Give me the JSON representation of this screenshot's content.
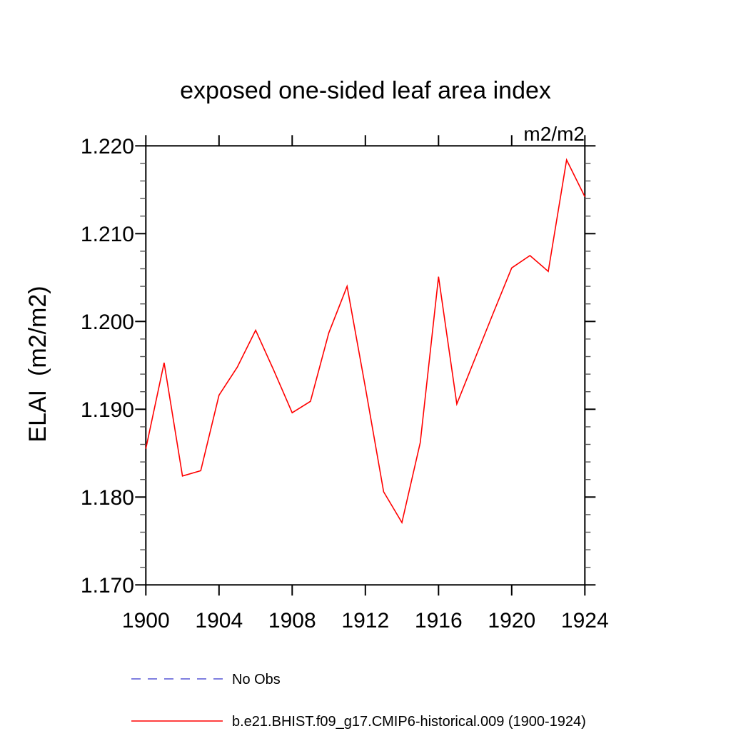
{
  "title": "exposed one-sided leaf area index",
  "units_label": "m2/m2",
  "y_axis_title": "ELAI  (m2/m2)",
  "chart_data": {
    "type": "line",
    "title": "exposed one-sided leaf area index",
    "xlabel": "",
    "ylabel": "ELAI (m2/m2)",
    "units": "m2/m2",
    "x": [
      1900,
      1901,
      1902,
      1903,
      1904,
      1905,
      1906,
      1907,
      1908,
      1909,
      1910,
      1911,
      1912,
      1913,
      1914,
      1915,
      1916,
      1917,
      1918,
      1919,
      1920,
      1921,
      1922,
      1923,
      1924
    ],
    "series": [
      {
        "name": "b.e21.BHIST.f09_g17.CMIP6-historical.009 (1900-1924)",
        "color": "#ff0000",
        "style": "solid",
        "values": [
          1.1855,
          1.1953,
          1.1824,
          1.183,
          1.1916,
          1.1948,
          1.199,
          1.1944,
          1.1896,
          1.1909,
          1.1987,
          1.204,
          1.1925,
          1.1806,
          1.1771,
          1.1862,
          1.2051,
          1.1906,
          1.1958,
          1.201,
          1.2061,
          1.2075,
          1.2057,
          1.2184,
          1.2142
        ]
      }
    ],
    "xlim": [
      1900,
      1924
    ],
    "ylim": [
      1.17,
      1.22
    ],
    "x_major_ticks": [
      1900,
      1904,
      1908,
      1912,
      1916,
      1920,
      1924
    ],
    "x_tick_labels": [
      "1900",
      "1904",
      "1908",
      "1912",
      "1916",
      "1920",
      "1924"
    ],
    "y_major_ticks": [
      1.17,
      1.18,
      1.19,
      1.2,
      1.21,
      1.22
    ],
    "y_tick_labels": [
      "1.170",
      "1.180",
      "1.190",
      "1.200",
      "1.210",
      "1.220"
    ],
    "y_minor_step": 0.002,
    "grid": false,
    "legend_position": "below-left"
  },
  "legend": {
    "items": [
      {
        "label": "No Obs",
        "color": "#7f7fe0",
        "style": "dashed"
      },
      {
        "label": "b.e21.BHIST.f09_g17.CMIP6-historical.009 (1900-1924)",
        "color": "#ff0000",
        "style": "solid"
      }
    ]
  },
  "colors": {
    "axis": "#000000",
    "minor_tick": "#555555",
    "series_red": "#ff0000",
    "no_obs_blue": "#7f7fe0",
    "background": "#ffffff"
  }
}
